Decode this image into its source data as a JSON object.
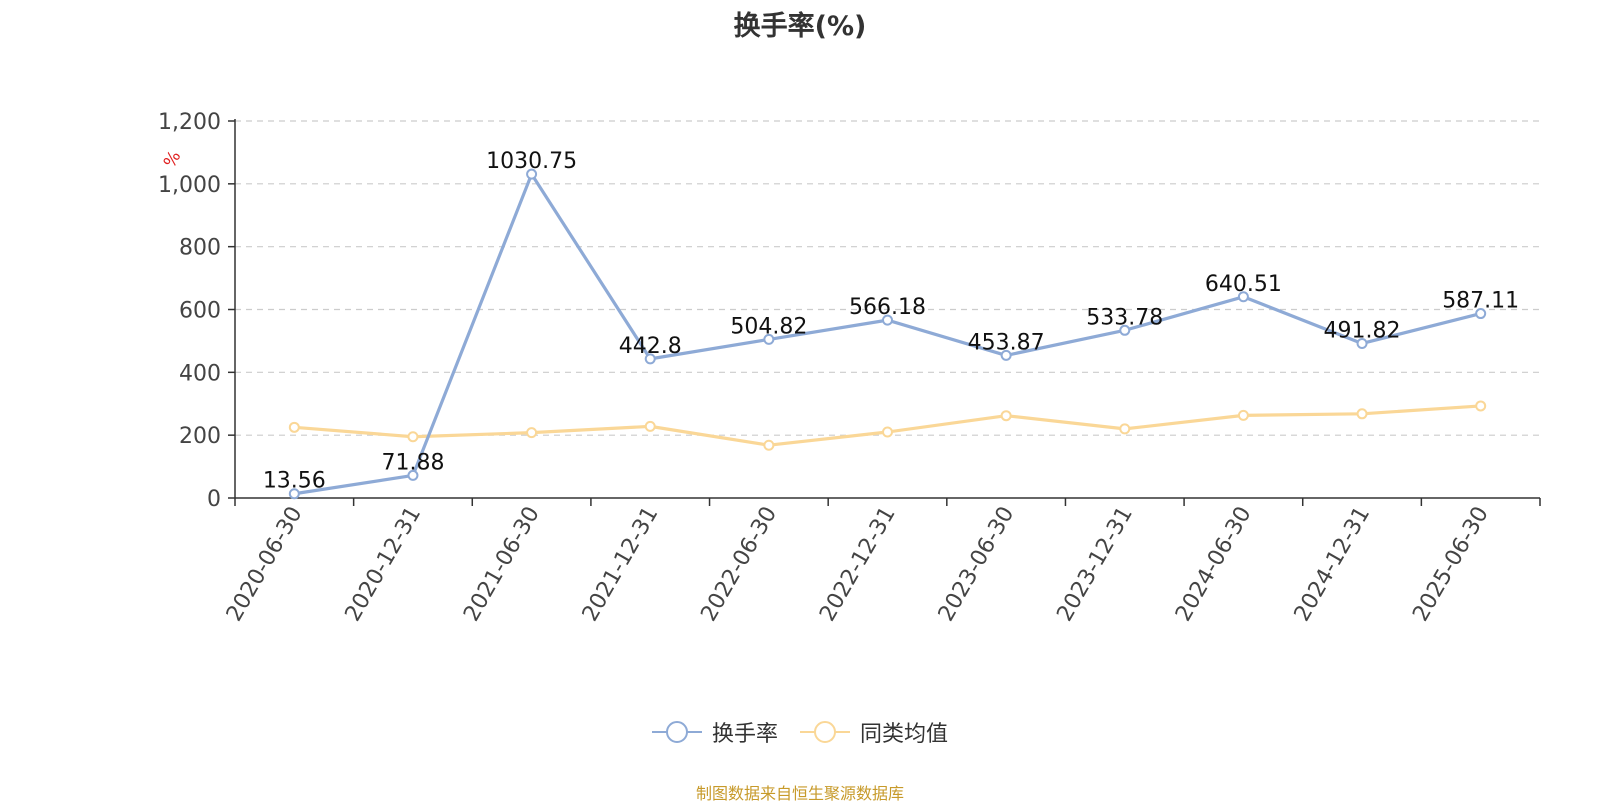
{
  "chart_data": {
    "type": "line",
    "title": "换手率(%)",
    "ylabel": "%",
    "xlabel": "",
    "categories": [
      "2020-06-30",
      "2020-12-31",
      "2021-06-30",
      "2021-12-31",
      "2022-06-30",
      "2022-12-31",
      "2023-06-30",
      "2023-12-31",
      "2024-06-30",
      "2024-12-31",
      "2025-06-30"
    ],
    "series": [
      {
        "name": "换手率",
        "values": [
          13.56,
          71.88,
          1030.75,
          442.8,
          504.82,
          566.18,
          453.87,
          533.78,
          640.51,
          491.82,
          587.11
        ],
        "data_labels": [
          "13.56",
          "71.88",
          "1030.75",
          "442.8",
          "504.82",
          "566.18",
          "453.87",
          "533.78",
          "640.51",
          "491.82",
          "587.11"
        ],
        "color": "#8eaad6"
      },
      {
        "name": "同类均值",
        "values": [
          225,
          195,
          208,
          228,
          168,
          210,
          262,
          220,
          263,
          268,
          293
        ],
        "color": "#fad797"
      }
    ],
    "ylim": [
      0,
      1200
    ],
    "yticks": [
      0,
      200,
      400,
      600,
      800,
      1000,
      1200
    ],
    "ytick_labels": [
      "0",
      "200",
      "400",
      "600",
      "800",
      "1,000",
      "1,200"
    ],
    "grid": true,
    "legend_position": "bottom"
  },
  "source_note": "制图数据来自恒生聚源数据库",
  "colors": {
    "axis": "#333333",
    "grid": "#cccccc",
    "unit_label": "#e02020",
    "source_note": "#c79a2a"
  }
}
